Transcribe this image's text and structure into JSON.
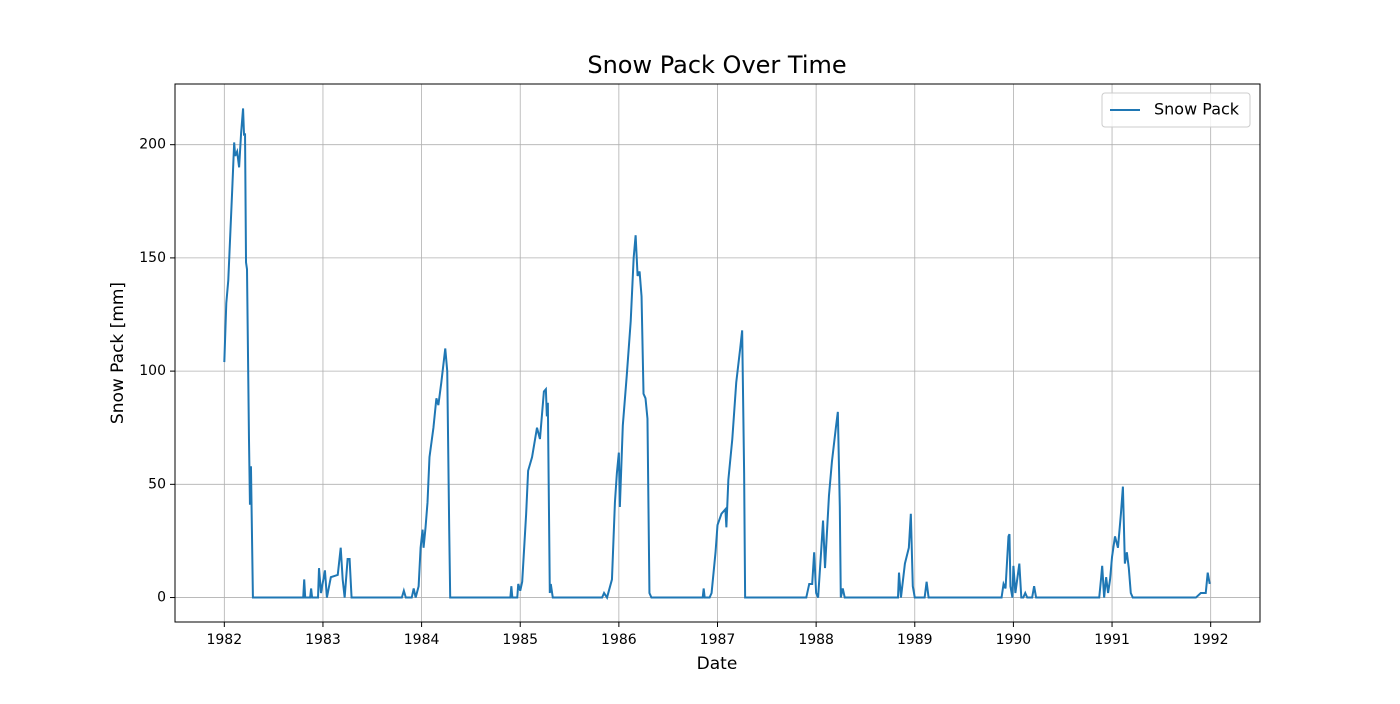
{
  "chart_data": {
    "type": "line",
    "title": "Snow Pack Over Time",
    "xlabel": "Date",
    "ylabel": "Snow Pack [mm]",
    "xlim": [
      1981.5,
      1992.5
    ],
    "xticks": [
      1982,
      1983,
      1984,
      1985,
      1986,
      1987,
      1988,
      1989,
      1990,
      1991,
      1992
    ],
    "ylim": [
      -10.8,
      226.8
    ],
    "yticks": [
      0,
      50,
      100,
      150,
      200
    ],
    "grid": true,
    "legend": "upper right",
    "x": [
      1982.0,
      1982.02,
      1982.04,
      1982.06,
      1982.08,
      1982.1,
      1982.11,
      1982.13,
      1982.15,
      1982.17,
      1982.19,
      1982.2,
      1982.21,
      1982.22,
      1982.23,
      1982.25,
      1982.26,
      1982.27,
      1982.29,
      1982.8,
      1982.81,
      1982.82,
      1982.87,
      1982.88,
      1982.89,
      1982.95,
      1982.96,
      1982.98,
      1983.02,
      1983.04,
      1983.08,
      1983.15,
      1983.18,
      1983.2,
      1983.22,
      1983.25,
      1983.27,
      1983.29,
      1983.8,
      1983.82,
      1983.84,
      1983.9,
      1983.92,
      1983.94,
      1983.97,
      1983.99,
      1984.01,
      1984.02,
      1984.04,
      1984.06,
      1984.08,
      1984.12,
      1984.15,
      1984.17,
      1984.2,
      1984.24,
      1984.26,
      1984.28,
      1984.29,
      1984.9,
      1984.91,
      1984.92,
      1984.97,
      1984.98,
      1985.0,
      1985.02,
      1985.06,
      1985.08,
      1985.12,
      1985.17,
      1985.2,
      1985.24,
      1985.26,
      1985.27,
      1985.28,
      1985.3,
      1985.31,
      1985.33,
      1985.83,
      1985.85,
      1985.88,
      1985.93,
      1985.96,
      1985.98,
      1986.0,
      1986.01,
      1986.04,
      1986.08,
      1986.12,
      1986.15,
      1986.17,
      1986.19,
      1986.21,
      1986.23,
      1986.25,
      1986.27,
      1986.29,
      1986.31,
      1986.33,
      1986.85,
      1986.86,
      1986.87,
      1986.92,
      1986.94,
      1986.98,
      1987.0,
      1987.04,
      1987.08,
      1987.09,
      1987.11,
      1987.15,
      1987.19,
      1987.23,
      1987.25,
      1987.27,
      1987.28,
      1987.9,
      1987.93,
      1987.96,
      1987.98,
      1988.0,
      1988.02,
      1988.05,
      1988.07,
      1988.09,
      1988.13,
      1988.16,
      1988.2,
      1988.22,
      1988.24,
      1988.25,
      1988.27,
      1988.29,
      1988.83,
      1988.84,
      1988.86,
      1988.9,
      1988.94,
      1988.96,
      1988.98,
      1989.0,
      1989.1,
      1989.12,
      1989.14,
      1989.88,
      1989.9,
      1989.92,
      1989.95,
      1989.96,
      1989.97,
      1989.99,
      1990.0,
      1990.02,
      1990.06,
      1990.08,
      1990.1,
      1990.12,
      1990.14,
      1990.19,
      1990.21,
      1990.23,
      1990.87,
      1990.89,
      1990.9,
      1990.92,
      1990.94,
      1990.96,
      1990.98,
      1991.0,
      1991.03,
      1991.06,
      1991.09,
      1991.11,
      1991.13,
      1991.15,
      1991.17,
      1991.19,
      1991.21,
      1991.85,
      1991.9,
      1991.95,
      1991.97,
      1991.99
    ],
    "series": [
      {
        "name": "Snow Pack",
        "color": "#1f77b4",
        "values": [
          104,
          130,
          140,
          160,
          180,
          201,
          195,
          197,
          190,
          205,
          216,
          204,
          205,
          148,
          145,
          70,
          41,
          58,
          0,
          0,
          8,
          0,
          0,
          4,
          0,
          0,
          13,
          2,
          12,
          0,
          9,
          10,
          22,
          8,
          0,
          17,
          17,
          0,
          0,
          3,
          0,
          0,
          4,
          0,
          5,
          22,
          30,
          22,
          31,
          42,
          62,
          75,
          88,
          85,
          95,
          110,
          100,
          30,
          0,
          0,
          5,
          0,
          0,
          6,
          3,
          7,
          37,
          56,
          62,
          75,
          70,
          91,
          92,
          80,
          86,
          2,
          6,
          0,
          0,
          2,
          0,
          8,
          42,
          55,
          64,
          40,
          76,
          98,
          122,
          150,
          160,
          142,
          144,
          133,
          90,
          88,
          79,
          2,
          0,
          0,
          4,
          0,
          0,
          2,
          20,
          32,
          37,
          39,
          31,
          52,
          70,
          95,
          110,
          118,
          55,
          0,
          0,
          6,
          6,
          20,
          2,
          0,
          20,
          34,
          13,
          45,
          60,
          75,
          82,
          40,
          0,
          4,
          0,
          0,
          11,
          0,
          15,
          22,
          37,
          5,
          0,
          0,
          7,
          0,
          0,
          6,
          4,
          27,
          28,
          5,
          0,
          14,
          2,
          15,
          0,
          0,
          2,
          0,
          0,
          5,
          0,
          0,
          9,
          14,
          0,
          9,
          2,
          8,
          18,
          27,
          22,
          37,
          49,
          15,
          20,
          13,
          2,
          0,
          0,
          2,
          2,
          11,
          6
        ]
      }
    ]
  }
}
